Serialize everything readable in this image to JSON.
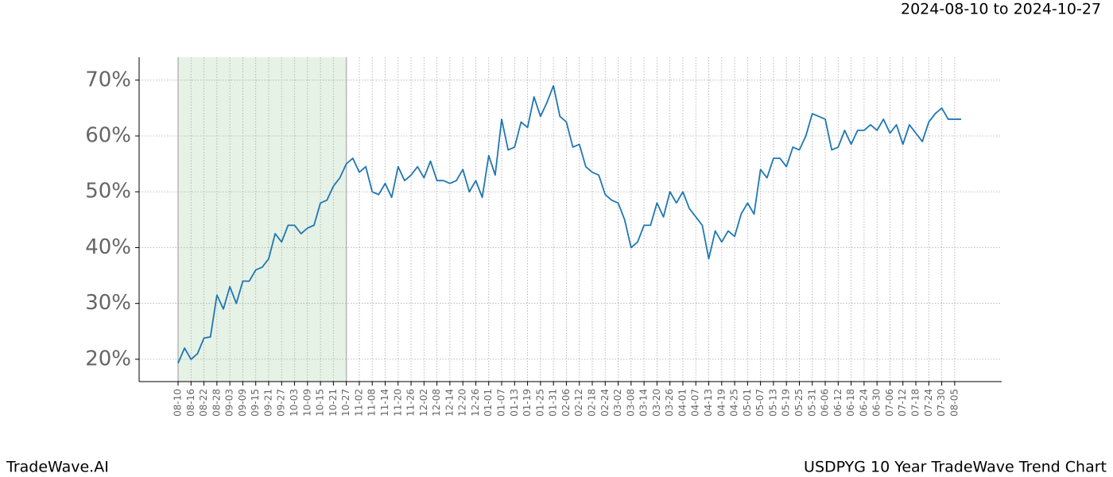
{
  "chart_data": {
    "type": "line",
    "subtitle": "2024-08-10 to 2024-10-27",
    "footer_left": "TradeWave.AI",
    "footer_right": "USDPYG 10 Year TradeWave Trend Chart",
    "categories": [
      "08-10",
      null,
      "08-16",
      null,
      "08-22",
      null,
      "08-28",
      null,
      "09-03",
      null,
      "09-09",
      null,
      "09-15",
      null,
      "09-21",
      null,
      "09-27",
      null,
      "10-03",
      null,
      "10-09",
      null,
      "10-15",
      null,
      "10-21",
      null,
      "10-27",
      null,
      "11-02",
      null,
      "11-08",
      null,
      "11-14",
      null,
      "11-20",
      null,
      "11-26",
      null,
      "12-02",
      null,
      "12-08",
      null,
      "12-14",
      null,
      "12-20",
      null,
      "12-26",
      null,
      "01-01",
      null,
      "01-07",
      null,
      "01-13",
      null,
      "01-19",
      null,
      "01-25",
      null,
      "01-31",
      null,
      "02-06",
      null,
      "02-12",
      null,
      "02-18",
      null,
      "02-24",
      null,
      "03-02",
      null,
      "03-08",
      null,
      "03-14",
      null,
      "03-20",
      null,
      "03-26",
      null,
      "04-01",
      null,
      "04-07",
      null,
      "04-13",
      null,
      "04-19",
      null,
      "04-25",
      null,
      "05-01",
      null,
      "05-07",
      null,
      "05-13",
      null,
      "05-19",
      null,
      "05-25",
      null,
      "05-31",
      null,
      "06-06",
      null,
      "06-12",
      null,
      "06-18",
      null,
      "06-24",
      null,
      "06-30",
      null,
      "07-06",
      null,
      "07-12",
      null,
      "07-18",
      null,
      "07-24",
      null,
      "07-30",
      null,
      "08-05",
      null
    ],
    "values": [
      19.3,
      22,
      20,
      21,
      23.8,
      24,
      31.5,
      29,
      33,
      30,
      34,
      34,
      36,
      36.5,
      38,
      42.5,
      41,
      44,
      44,
      42.5,
      43.5,
      44,
      48,
      48.5,
      51,
      52.5,
      55,
      56,
      53.5,
      54.5,
      50,
      49.5,
      51.5,
      49,
      54.5,
      52,
      53,
      54.5,
      52.5,
      55.5,
      52,
      52,
      51.5,
      52,
      54,
      50,
      52,
      49,
      56.5,
      53,
      63,
      57.5,
      58,
      62.5,
      61.5,
      67,
      63.5,
      66,
      69,
      63.5,
      62.5,
      58,
      58.5,
      54.5,
      53.5,
      53,
      49.5,
      48.5,
      48,
      45,
      40,
      41,
      44,
      44,
      48,
      45.5,
      50,
      48,
      50,
      47,
      45.5,
      44,
      38,
      43,
      41,
      43,
      42,
      46,
      48,
      46,
      54,
      52.5,
      56,
      56,
      54.5,
      58,
      57.5,
      60,
      64,
      63.5,
      63,
      57.5,
      58,
      61,
      58.5,
      61,
      61,
      62,
      61,
      63,
      60.5,
      62,
      58.5,
      62,
      60.5,
      59,
      62.5,
      64,
      65,
      63,
      63,
      63
    ],
    "color": "#1f77b4",
    "ylim": [
      16,
      74.1
    ],
    "yticks": [
      {
        "value": 20,
        "label": "20%"
      },
      {
        "value": 30,
        "label": "30%"
      },
      {
        "value": 40,
        "label": "40%"
      },
      {
        "value": 50,
        "label": "50%"
      },
      {
        "value": 60,
        "label": "60%"
      },
      {
        "value": 70,
        "label": "70%"
      }
    ],
    "grid": true,
    "highlight_color": "#e6f2e6"
  }
}
